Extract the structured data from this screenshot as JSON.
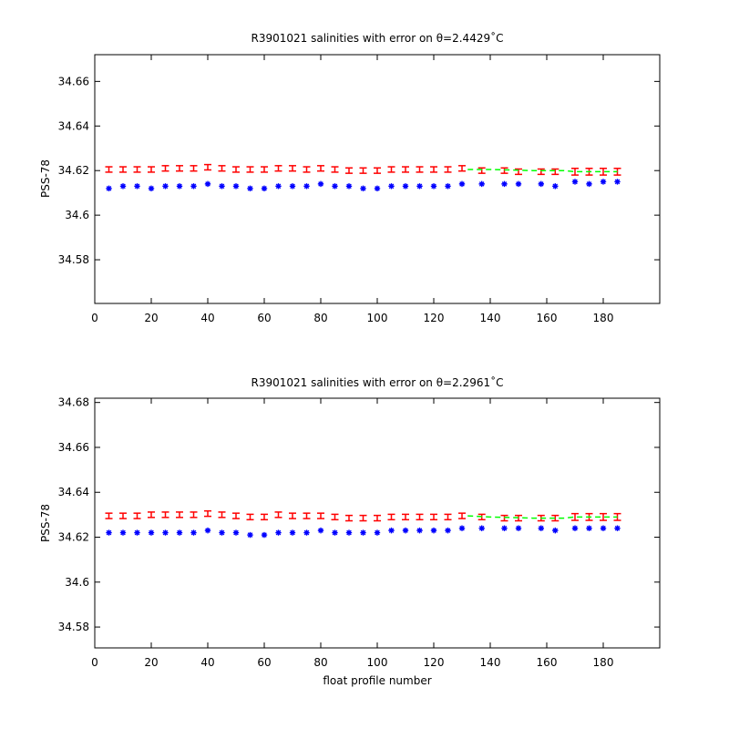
{
  "chart_data": [
    {
      "type": "scatter",
      "title": "R3901021 salinities with error on θ=2.4429˚C",
      "xlabel": "",
      "ylabel": "PSS-78",
      "xlim": [
        0,
        200
      ],
      "ylim": [
        34.5604,
        34.672
      ],
      "xticks": [
        "0",
        "20",
        "40",
        "60",
        "80",
        "100",
        "120",
        "140",
        "160",
        "180"
      ],
      "yticks": [
        "34.58",
        "34.6",
        "34.62",
        "34.64",
        "34.66"
      ],
      "grid": false,
      "series": [
        {
          "role": "float-salinity",
          "marker": "asterisk",
          "color": "#0000ff",
          "x": [
            5,
            10,
            15,
            20,
            25,
            30,
            35,
            40,
            45,
            50,
            55,
            60,
            65,
            70,
            75,
            80,
            85,
            90,
            95,
            100,
            105,
            110,
            115,
            120,
            125,
            130,
            137,
            145,
            150,
            158,
            163,
            170,
            175,
            180,
            185
          ],
          "y": [
            34.612,
            34.613,
            34.613,
            34.612,
            34.613,
            34.613,
            34.613,
            34.614,
            34.613,
            34.613,
            34.612,
            34.612,
            34.613,
            34.613,
            34.613,
            34.614,
            34.613,
            34.613,
            34.612,
            34.612,
            34.613,
            34.613,
            34.613,
            34.613,
            34.613,
            34.614,
            34.614,
            34.614,
            34.614,
            34.614,
            34.613,
            34.615,
            34.614,
            34.615,
            34.615
          ]
        },
        {
          "role": "mapped-salinity-with-error",
          "marker": "errorbar",
          "color": "#ff0000",
          "x": [
            5,
            10,
            15,
            20,
            25,
            30,
            35,
            40,
            45,
            50,
            55,
            60,
            65,
            70,
            75,
            80,
            85,
            90,
            95,
            100,
            105,
            110,
            115,
            120,
            125,
            130,
            137,
            145,
            150,
            158,
            163,
            170,
            175,
            180,
            185
          ],
          "y": [
            34.6205,
            34.6205,
            34.6205,
            34.6205,
            34.621,
            34.621,
            34.621,
            34.6215,
            34.621,
            34.6205,
            34.6205,
            34.6205,
            34.621,
            34.621,
            34.6205,
            34.621,
            34.6205,
            34.62,
            34.62,
            34.62,
            34.6205,
            34.6205,
            34.6205,
            34.6205,
            34.6205,
            34.621,
            34.62,
            34.62,
            34.6195,
            34.6195,
            34.6195,
            34.6195,
            34.6195,
            34.6195,
            34.6195
          ],
          "err": [
            0.0012,
            0.0012,
            0.0012,
            0.0012,
            0.0012,
            0.0012,
            0.0012,
            0.0012,
            0.0012,
            0.0012,
            0.0012,
            0.0012,
            0.0012,
            0.0012,
            0.0012,
            0.0012,
            0.0012,
            0.0012,
            0.0012,
            0.0012,
            0.0012,
            0.0012,
            0.0012,
            0.0012,
            0.0012,
            0.0012,
            0.0012,
            0.0012,
            0.0012,
            0.0012,
            0.0012,
            0.0015,
            0.0015,
            0.0015,
            0.0015
          ]
        },
        {
          "role": "calibrated-fit",
          "marker": "dashed-line",
          "color": "#00ff00",
          "x": [
            132,
            140,
            155,
            166,
            170,
            185
          ],
          "y": [
            34.6205,
            34.6205,
            34.62,
            34.62,
            34.6195,
            34.6195
          ]
        }
      ]
    },
    {
      "type": "scatter",
      "title": "R3901021 salinities with error on θ=2.2961˚C",
      "xlabel": "float profile number",
      "ylabel": "PSS-78",
      "xlim": [
        0,
        200
      ],
      "ylim": [
        34.5707,
        34.6819
      ],
      "xticks": [
        "0",
        "20",
        "40",
        "60",
        "80",
        "100",
        "120",
        "140",
        "160",
        "180"
      ],
      "yticks": [
        "34.58",
        "34.6",
        "34.62",
        "34.64",
        "34.66",
        "34.68"
      ],
      "grid": false,
      "series": [
        {
          "role": "float-salinity",
          "marker": "asterisk",
          "color": "#0000ff",
          "x": [
            5,
            10,
            15,
            20,
            25,
            30,
            35,
            40,
            45,
            50,
            55,
            60,
            65,
            70,
            75,
            80,
            85,
            90,
            95,
            100,
            105,
            110,
            115,
            120,
            125,
            130,
            137,
            145,
            150,
            158,
            163,
            170,
            175,
            180,
            185
          ],
          "y": [
            34.622,
            34.622,
            34.622,
            34.622,
            34.622,
            34.622,
            34.622,
            34.623,
            34.622,
            34.622,
            34.621,
            34.621,
            34.622,
            34.622,
            34.622,
            34.623,
            34.622,
            34.622,
            34.622,
            34.622,
            34.623,
            34.623,
            34.623,
            34.623,
            34.623,
            34.624,
            34.624,
            34.624,
            34.624,
            34.624,
            34.623,
            34.624,
            34.624,
            34.624,
            34.624
          ]
        },
        {
          "role": "mapped-salinity-with-error",
          "marker": "errorbar",
          "color": "#ff0000",
          "x": [
            5,
            10,
            15,
            20,
            25,
            30,
            35,
            40,
            45,
            50,
            55,
            60,
            65,
            70,
            75,
            80,
            85,
            90,
            95,
            100,
            105,
            110,
            115,
            120,
            125,
            130,
            137,
            145,
            150,
            158,
            163,
            170,
            175,
            180,
            185
          ],
          "y": [
            34.6295,
            34.6295,
            34.6295,
            34.63,
            34.63,
            34.63,
            34.63,
            34.6305,
            34.63,
            34.6295,
            34.629,
            34.629,
            34.63,
            34.6295,
            34.6295,
            34.6295,
            34.629,
            34.6285,
            34.6285,
            34.6285,
            34.629,
            34.629,
            34.629,
            34.629,
            34.629,
            34.6295,
            34.629,
            34.6285,
            34.6285,
            34.6285,
            34.6285,
            34.629,
            34.629,
            34.629,
            34.629
          ],
          "err": [
            0.0012,
            0.0012,
            0.0012,
            0.0012,
            0.0012,
            0.0012,
            0.0012,
            0.0012,
            0.0012,
            0.0012,
            0.0012,
            0.0012,
            0.0012,
            0.0012,
            0.0012,
            0.0012,
            0.0012,
            0.0012,
            0.0012,
            0.0012,
            0.0012,
            0.0012,
            0.0012,
            0.0012,
            0.0012,
            0.0012,
            0.0012,
            0.0012,
            0.0012,
            0.0012,
            0.0012,
            0.0015,
            0.0015,
            0.0015,
            0.0015
          ]
        },
        {
          "role": "calibrated-fit",
          "marker": "dashed-line",
          "color": "#00ff00",
          "x": [
            132,
            140,
            155,
            166,
            170,
            185
          ],
          "y": [
            34.6295,
            34.629,
            34.6285,
            34.6285,
            34.629,
            34.629
          ]
        }
      ]
    }
  ]
}
